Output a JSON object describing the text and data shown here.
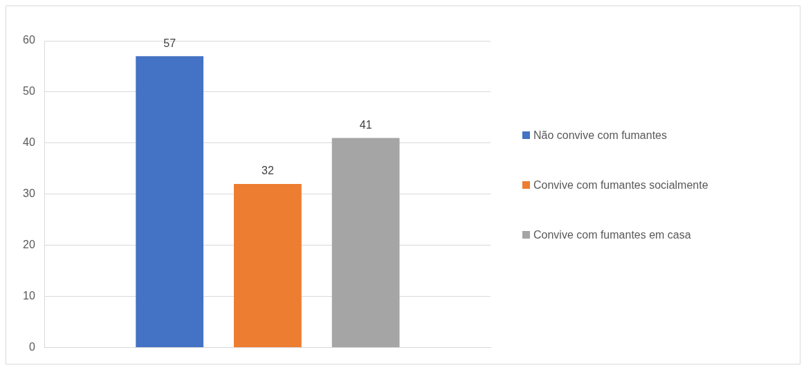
{
  "chart_data": {
    "type": "bar",
    "categories": [
      null
    ],
    "series": [
      {
        "name": "Não convive com fumantes",
        "color": "#4472c4",
        "values": [
          57
        ]
      },
      {
        "name": "Convive com fumantes socialmente",
        "color": "#ed7d31",
        "values": [
          32
        ]
      },
      {
        "name": "Convive com fumantes em casa",
        "color": "#a5a5a5",
        "values": [
          41
        ]
      }
    ],
    "ylim": [
      0,
      60
    ],
    "yticks": [
      0,
      10,
      20,
      30,
      40,
      50,
      60
    ],
    "grid": "y",
    "legend": "right",
    "data_labels": true
  }
}
